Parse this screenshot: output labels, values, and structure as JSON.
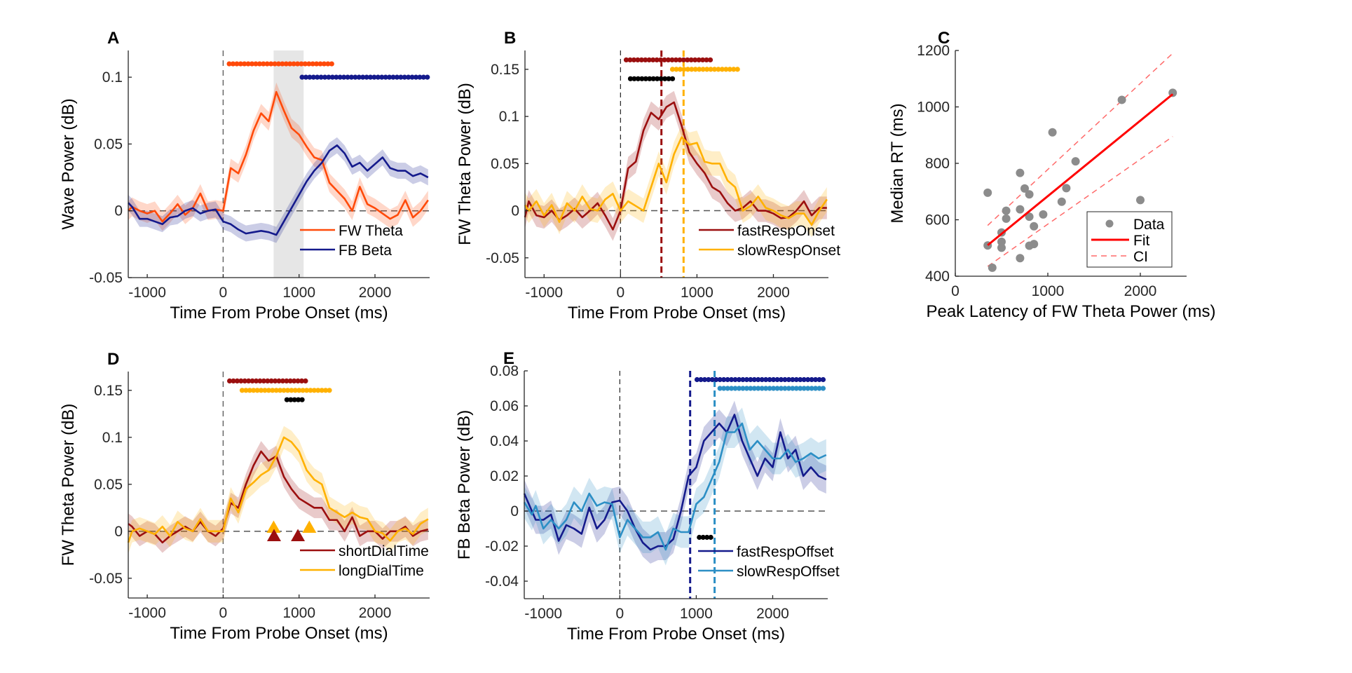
{
  "colors": {
    "fw_theta": "#ff4a0a",
    "fb_beta": "#141a8c",
    "dark_red": "#9b0f0f",
    "gold": "#ffb100",
    "navy": "#141a8c",
    "steel_blue": "#2c8fc5",
    "black": "#000000",
    "scatter_gray": "#8c8c8c",
    "fit_red": "#ff0000",
    "ci_red": "#ff6a6a",
    "shade_gray": "#e6e6e6"
  },
  "chart_data": [
    {
      "id": "A",
      "type": "line",
      "panel_label": "A",
      "xlabel": "Time From Probe Onset (ms)",
      "ylabel": "Wave Power (dB)",
      "xlim": [
        -1250,
        2720
      ],
      "ylim": [
        -0.05,
        0.12
      ],
      "xticks": [
        -1000,
        0,
        1000,
        2000
      ],
      "xtick_labels": [
        "-1000",
        "0",
        "1000",
        "2000"
      ],
      "yticks": [
        -0.05,
        0,
        0.05,
        0.1
      ],
      "ytick_labels": [
        "-0.05",
        "0",
        "0.05",
        "0.1"
      ],
      "legend": "bottom-right",
      "shaded_region": [
        665,
        1060
      ],
      "vlines": [
        {
          "x": 0,
          "color": "gray"
        }
      ],
      "x": [
        -1250,
        -1200,
        -1100,
        -1000,
        -900,
        -800,
        -700,
        -600,
        -500,
        -400,
        -300,
        -200,
        -100,
        0,
        100,
        200,
        300,
        400,
        500,
        600,
        700,
        800,
        900,
        1000,
        1100,
        1200,
        1300,
        1400,
        1500,
        1600,
        1700,
        1800,
        1900,
        2000,
        2100,
        2200,
        2300,
        2400,
        2500,
        2600,
        2700
      ],
      "series": [
        {
          "name": "FW Theta",
          "color_key": "fw_theta",
          "err": 0.007,
          "values": [
            0.0,
            0.003,
            0.0,
            -0.002,
            0.0,
            -0.008,
            -0.002,
            0.005,
            -0.003,
            0.002,
            0.013,
            0.0,
            0.001,
            0.0,
            0.032,
            0.028,
            0.042,
            0.06,
            0.073,
            0.067,
            0.089,
            0.075,
            0.062,
            0.057,
            0.048,
            0.04,
            0.038,
            0.021,
            0.015,
            0.009,
            0.0,
            0.018,
            0.005,
            0.002,
            -0.002,
            -0.006,
            -0.003,
            0.008,
            -0.005,
            0.0,
            0.008
          ]
        },
        {
          "name": "FB Beta",
          "color_key": "fb_beta",
          "err": 0.006,
          "values": [
            0.006,
            0.003,
            -0.006,
            -0.006,
            -0.008,
            -0.01,
            -0.005,
            -0.004,
            0.0,
            0.002,
            -0.002,
            0.0,
            0.001,
            -0.008,
            -0.01,
            -0.014,
            -0.017,
            -0.016,
            -0.015,
            -0.016,
            -0.018,
            -0.008,
            0.002,
            0.012,
            0.022,
            0.03,
            0.036,
            0.045,
            0.049,
            0.043,
            0.033,
            0.036,
            0.03,
            0.035,
            0.04,
            0.032,
            0.03,
            0.03,
            0.026,
            0.028,
            0.025
          ]
        }
      ],
      "sig_bars": [
        {
          "color_key": "fw_theta",
          "y": 0.11,
          "x_start": 80,
          "x_end": 1465
        },
        {
          "color_key": "fb_beta",
          "y": 0.1,
          "x_start": 1040,
          "x_end": 2720
        }
      ]
    },
    {
      "id": "B",
      "type": "line",
      "panel_label": "B",
      "xlabel": "Time From Probe Onset (ms)",
      "ylabel": "FW Theta Power (dB)",
      "xlim": [
        -1250,
        2720
      ],
      "ylim": [
        -0.071,
        0.17
      ],
      "xticks": [
        -1000,
        0,
        1000,
        2000
      ],
      "xtick_labels": [
        "-1000",
        "0",
        "1000",
        "2000"
      ],
      "yticks": [
        -0.05,
        0,
        0.05,
        0.1,
        0.15
      ],
      "ytick_labels": [
        "-0.05",
        "0",
        "0.05",
        "0.1",
        "0.15"
      ],
      "legend": "bottom-right",
      "vlines": [
        {
          "x": 0,
          "color": "black_thin"
        },
        {
          "x": 535,
          "color_key": "dark_red"
        },
        {
          "x": 825,
          "color_key": "gold"
        }
      ],
      "x": [
        -1250,
        -1200,
        -1100,
        -1000,
        -900,
        -800,
        -700,
        -600,
        -500,
        -400,
        -300,
        -200,
        -100,
        0,
        100,
        200,
        300,
        400,
        500,
        600,
        700,
        800,
        900,
        1000,
        1100,
        1200,
        1300,
        1400,
        1500,
        1600,
        1700,
        1800,
        1900,
        2000,
        2100,
        2200,
        2300,
        2400,
        2500,
        2600,
        2700
      ],
      "series": [
        {
          "name": "fastRespOnset",
          "color_key": "dark_red",
          "err": 0.012,
          "values": [
            -0.007,
            0.01,
            -0.005,
            -0.007,
            0.0,
            -0.01,
            -0.005,
            0.002,
            -0.007,
            0.0,
            0.008,
            -0.005,
            -0.02,
            0.0,
            0.045,
            0.052,
            0.085,
            0.104,
            0.097,
            0.11,
            0.115,
            0.09,
            0.062,
            0.05,
            0.04,
            0.025,
            0.02,
            0.008,
            0.0,
            0.003,
            0.01,
            0.0,
            0.0,
            -0.003,
            -0.008,
            -0.007,
            0.0,
            0.01,
            -0.005,
            0.003,
            0.003
          ]
        },
        {
          "name": "slowRespOnset",
          "color_key": "gold",
          "err": 0.013,
          "values": [
            0.006,
            0.0,
            0.01,
            -0.005,
            0.006,
            -0.012,
            0.008,
            0.0,
            0.015,
            0.002,
            0.0,
            0.012,
            0.018,
            0.0,
            0.01,
            0.005,
            0.0,
            0.025,
            0.05,
            0.03,
            0.06,
            0.078,
            0.07,
            0.072,
            0.052,
            0.05,
            0.05,
            0.032,
            0.025,
            0.0,
            0.005,
            0.015,
            0.003,
            0.0,
            -0.005,
            -0.008,
            -0.003,
            -0.003,
            -0.015,
            0.0,
            0.012
          ]
        }
      ],
      "sig_bars": [
        {
          "color_key": "dark_red",
          "y": 0.16,
          "x_start": 75,
          "x_end": 1210
        },
        {
          "color_key": "gold",
          "y": 0.15,
          "x_start": 680,
          "x_end": 1560
        },
        {
          "color_key": "black",
          "y": 0.14,
          "x_start": 130,
          "x_end": 705
        }
      ]
    },
    {
      "id": "C",
      "type": "scatter",
      "panel_label": "C",
      "xlabel": "Peak Latency of FW Theta Power (ms)",
      "ylabel": "Median RT (ms)",
      "xlim": [
        0,
        2500
      ],
      "ylim": [
        400,
        1200
      ],
      "xticks": [
        0,
        1000,
        2000
      ],
      "xtick_labels": [
        "0",
        "1000",
        "2000"
      ],
      "yticks": [
        400,
        600,
        800,
        1000,
        1200
      ],
      "ytick_labels": [
        "400",
        "600",
        "800",
        "1000",
        "1200"
      ],
      "legend": "bottom-right",
      "legend_entries": [
        "Data",
        "Fit",
        "CI"
      ],
      "points": [
        [
          350,
          696
        ],
        [
          350,
          509
        ],
        [
          400,
          430
        ],
        [
          500,
          555
        ],
        [
          500,
          522
        ],
        [
          500,
          501
        ],
        [
          550,
          632
        ],
        [
          550,
          604
        ],
        [
          700,
          766
        ],
        [
          700,
          637
        ],
        [
          700,
          464
        ],
        [
          750,
          711
        ],
        [
          800,
          690
        ],
        [
          800,
          611
        ],
        [
          800,
          508
        ],
        [
          850,
          577
        ],
        [
          850,
          514
        ],
        [
          950,
          619
        ],
        [
          1050,
          910
        ],
        [
          1150,
          664
        ],
        [
          1200,
          712
        ],
        [
          1300,
          807
        ],
        [
          1800,
          1025
        ],
        [
          2000,
          670
        ],
        [
          2350,
          1050
        ]
      ],
      "fit": {
        "x": [
          350,
          2350
        ],
        "y": [
          510,
          1045
        ]
      },
      "ci_upper": {
        "x": [
          350,
          2350
        ],
        "y": [
          580,
          1190
        ]
      },
      "ci_lower": {
        "x": [
          350,
          2350
        ],
        "y": [
          435,
          895
        ]
      }
    },
    {
      "id": "D",
      "type": "line",
      "panel_label": "D",
      "xlabel": "Time From Probe Onset (ms)",
      "ylabel": "FW Theta Power (dB)",
      "xlim": [
        -1250,
        2720
      ],
      "ylim": [
        -0.071,
        0.17
      ],
      "xticks": [
        -1000,
        0,
        1000,
        2000
      ],
      "xtick_labels": [
        "-1000",
        "0",
        "1000",
        "2000"
      ],
      "yticks": [
        -0.05,
        0,
        0.05,
        0.1,
        0.15
      ],
      "ytick_labels": [
        "-0.05",
        "0",
        "0.05",
        "0.1",
        "0.15"
      ],
      "legend": "bottom-right",
      "vlines": [
        {
          "x": 0,
          "color": "gray"
        }
      ],
      "x": [
        -1250,
        -1200,
        -1100,
        -1000,
        -900,
        -800,
        -700,
        -600,
        -500,
        -400,
        -300,
        -200,
        -100,
        0,
        100,
        200,
        300,
        400,
        500,
        600,
        700,
        800,
        900,
        1000,
        1100,
        1200,
        1300,
        1400,
        1500,
        1600,
        1700,
        1800,
        1900,
        2000,
        2100,
        2200,
        2300,
        2400,
        2500,
        2600,
        2700
      ],
      "series": [
        {
          "name": "shortDialTime",
          "color_key": "dark_red",
          "err": 0.011,
          "values": [
            0.008,
            0.005,
            -0.005,
            0.0,
            -0.003,
            -0.012,
            -0.005,
            0.0,
            0.005,
            0.0,
            0.01,
            0.0,
            -0.005,
            0.003,
            0.03,
            0.025,
            0.05,
            0.07,
            0.085,
            0.075,
            0.08,
            0.058,
            0.045,
            0.035,
            0.03,
            0.025,
            0.025,
            0.012,
            0.012,
            0.0,
            0.015,
            -0.005,
            0.0,
            0.0,
            -0.008,
            0.0,
            0.0,
            0.005,
            -0.005,
            0.0,
            0.002
          ]
        },
        {
          "name": "longDialTime",
          "color_key": "gold",
          "err": 0.012,
          "values": [
            -0.012,
            0.0,
            0.003,
            0.0,
            -0.003,
            0.005,
            -0.005,
            0.01,
            0.003,
            0.0,
            0.013,
            0.0,
            0.0,
            0.0,
            0.035,
            0.02,
            0.045,
            0.052,
            0.06,
            0.065,
            0.08,
            0.1,
            0.095,
            0.085,
            0.065,
            0.055,
            0.05,
            0.025,
            0.02,
            0.015,
            0.02,
            0.015,
            0.013,
            0.0,
            -0.002,
            -0.01,
            0.0,
            0.003,
            -0.003,
            0.008,
            0.013
          ]
        }
      ],
      "sig_bars": [
        {
          "color_key": "dark_red",
          "y": 0.16,
          "x_start": 85,
          "x_end": 1125
        },
        {
          "color_key": "gold",
          "y": 0.15,
          "x_start": 250,
          "x_end": 1410
        },
        {
          "color_key": "black",
          "y": 0.14,
          "x_start": 840,
          "x_end": 1080
        }
      ],
      "markers": [
        {
          "shape": "triangle",
          "color_key": "gold",
          "x": 665,
          "y": 0.004
        },
        {
          "shape": "triangle",
          "color_key": "gold",
          "x": 1135,
          "y": 0.004
        },
        {
          "shape": "triangle",
          "color_key": "dark_red",
          "x": 670,
          "y": -0.005
        },
        {
          "shape": "triangle",
          "color_key": "dark_red",
          "x": 985,
          "y": -0.005
        }
      ]
    },
    {
      "id": "E",
      "type": "line",
      "panel_label": "E",
      "xlabel": "Time From Probe Onset (ms)",
      "ylabel": "FB Beta Power (dB)",
      "xlim": [
        -1250,
        2720
      ],
      "ylim": [
        -0.05,
        0.08
      ],
      "xticks": [
        -1000,
        0,
        1000,
        2000
      ],
      "xtick_labels": [
        "-1000",
        "0",
        "1000",
        "2000"
      ],
      "yticks": [
        -0.04,
        -0.02,
        0,
        0.02,
        0.04,
        0.06,
        0.08
      ],
      "ytick_labels": [
        "-0.04",
        "-0.02",
        "0",
        "0.02",
        "0.04",
        "0.06",
        "0.08"
      ],
      "legend": "bottom-right",
      "vlines": [
        {
          "x": 0,
          "color": "black_thin"
        },
        {
          "x": 920,
          "color_key": "navy"
        },
        {
          "x": 1240,
          "color_key": "steel_blue"
        }
      ],
      "x": [
        -1250,
        -1150,
        -1100,
        -1000,
        -900,
        -800,
        -700,
        -600,
        -500,
        -400,
        -300,
        -200,
        -100,
        0,
        100,
        200,
        300,
        400,
        500,
        600,
        700,
        800,
        900,
        1000,
        1100,
        1200,
        1300,
        1400,
        1500,
        1600,
        1700,
        1800,
        1900,
        2000,
        2100,
        2200,
        2300,
        2400,
        2500,
        2600,
        2700
      ],
      "series": [
        {
          "name": "fastRespOffset",
          "color_key": "navy",
          "err": 0.008,
          "values": [
            0.01,
            0.0,
            -0.005,
            -0.005,
            -0.002,
            -0.017,
            -0.008,
            -0.01,
            -0.013,
            0.002,
            -0.01,
            -0.005,
            0.005,
            0.006,
            0.0,
            -0.01,
            -0.018,
            -0.022,
            -0.02,
            -0.02,
            -0.016,
            0.0,
            0.02,
            0.025,
            0.04,
            0.045,
            0.05,
            0.045,
            0.055,
            0.04,
            0.03,
            0.02,
            0.03,
            0.025,
            0.045,
            0.03,
            0.035,
            0.02,
            0.025,
            0.02,
            0.018
          ]
        },
        {
          "name": "slowRespOffset",
          "color_key": "steel_blue",
          "err": 0.009,
          "values": [
            0.005,
            -0.002,
            0.003,
            -0.01,
            -0.005,
            -0.01,
            -0.005,
            0.005,
            0.0,
            0.01,
            0.003,
            0.005,
            0.004,
            -0.015,
            -0.005,
            -0.01,
            -0.015,
            -0.015,
            -0.012,
            -0.022,
            -0.01,
            -0.012,
            -0.012,
            0.004,
            0.008,
            0.018,
            0.028,
            0.045,
            0.045,
            0.05,
            0.035,
            0.04,
            0.035,
            0.03,
            0.03,
            0.035,
            0.028,
            0.03,
            0.033,
            0.03,
            0.032
          ]
        }
      ],
      "sig_bars": [
        {
          "color_key": "navy",
          "y": 0.075,
          "x_start": 1010,
          "x_end": 2700
        },
        {
          "color_key": "steel_blue",
          "y": 0.07,
          "x_start": 1310,
          "x_end": 2700
        },
        {
          "color_key": "black",
          "y": -0.015,
          "x_start": 1040,
          "x_end": 1220
        }
      ]
    }
  ]
}
